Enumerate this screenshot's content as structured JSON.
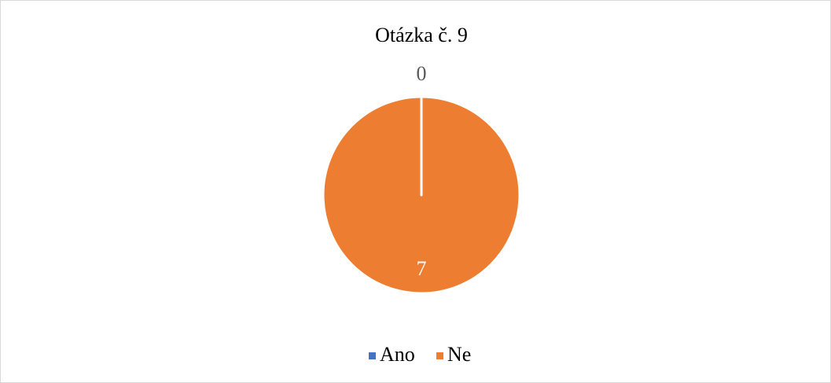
{
  "chart_data": {
    "type": "pie",
    "title": "Otázka č. 9",
    "categories": [
      "Ano",
      "Ne"
    ],
    "values": [
      0,
      7
    ],
    "colors": [
      "#4472c4",
      "#ed7d31"
    ],
    "legend": "bottom"
  }
}
